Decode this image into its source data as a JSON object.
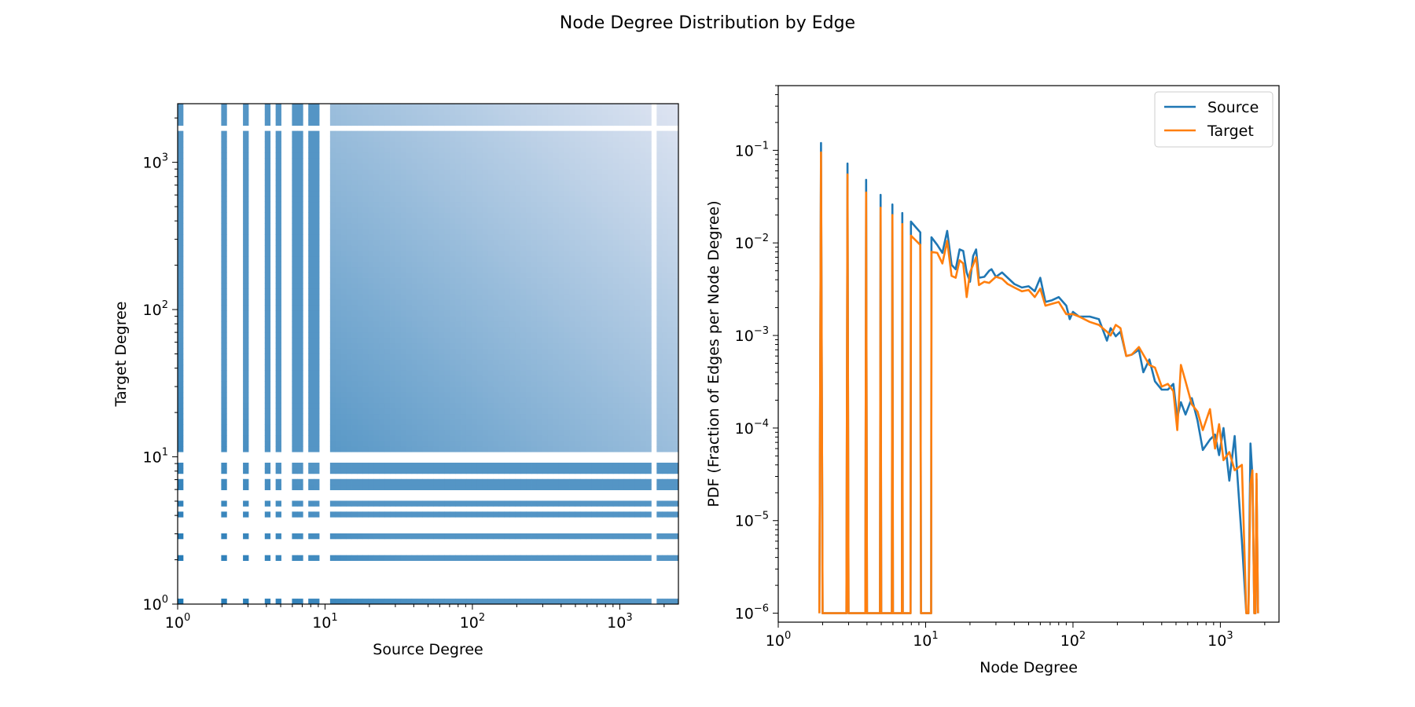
{
  "title": "Node Degree Distribution by Edge",
  "colors": {
    "source": "#1f77b4",
    "target": "#ff7f0e",
    "heat_base": "#1f77b4",
    "heat_light": "#f3f0f8"
  },
  "chart_data": [
    {
      "type": "heatmap",
      "xlabel": "Source Degree",
      "ylabel": "Target Degree",
      "xscale": "log",
      "yscale": "log",
      "xlim": [
        1,
        2500
      ],
      "ylim": [
        1,
        2500
      ],
      "xticks": [
        {
          "base": "10",
          "exp": "0",
          "value": 1
        },
        {
          "base": "10",
          "exp": "1",
          "value": 10
        },
        {
          "base": "10",
          "exp": "2",
          "value": 100
        },
        {
          "base": "10",
          "exp": "3",
          "value": 1000
        }
      ],
      "yticks": [
        {
          "base": "10",
          "exp": "0",
          "value": 1
        },
        {
          "base": "10",
          "exp": "1",
          "value": 10
        },
        {
          "base": "10",
          "exp": "2",
          "value": 100
        },
        {
          "base": "10",
          "exp": "3",
          "value": 1000
        }
      ],
      "integer_degrees_below": 10,
      "missing_degree_bands": [
        [
          10.0,
          10.4
        ],
        [
          1700,
          1800
        ]
      ],
      "dense_low_degrees": [
        1,
        2,
        3,
        4,
        5,
        6,
        7,
        8,
        9
      ],
      "cmap": "PuBu",
      "grid": false
    },
    {
      "type": "line",
      "xlabel": "Node Degree",
      "ylabel": "PDF (Fraction of Edges per Node Degree)",
      "xscale": "log",
      "yscale": "log",
      "xlim": [
        1,
        2500
      ],
      "ylim": [
        8e-07,
        0.5
      ],
      "xticks": [
        {
          "base": "10",
          "exp": "0",
          "value": 1
        },
        {
          "base": "10",
          "exp": "1",
          "value": 10
        },
        {
          "base": "10",
          "exp": "2",
          "value": 100
        },
        {
          "base": "10",
          "exp": "3",
          "value": 1000
        }
      ],
      "yticks": [
        {
          "base": "10",
          "exp": "−6",
          "value": 1e-06
        },
        {
          "base": "10",
          "exp": "−5",
          "value": 1e-05
        },
        {
          "base": "10",
          "exp": "−4",
          "value": 0.0001
        },
        {
          "base": "10",
          "exp": "−3",
          "value": 0.001
        },
        {
          "base": "10",
          "exp": "−2",
          "value": 0.01
        },
        {
          "base": "10",
          "exp": "−1",
          "value": 0.1
        }
      ],
      "legend": "top-right",
      "grid": false,
      "series": [
        {
          "name": "Source",
          "points": [
            [
              1.9,
              1e-06
            ],
            [
              1.95,
              0.12
            ],
            [
              2.0,
              1e-06
            ],
            [
              2.9,
              1e-06
            ],
            [
              2.95,
              0.072
            ],
            [
              3.0,
              1e-06
            ],
            [
              3.9,
              1e-06
            ],
            [
              3.95,
              0.048
            ],
            [
              4.0,
              1e-06
            ],
            [
              4.9,
              1e-06
            ],
            [
              4.95,
              0.033
            ],
            [
              5.0,
              1e-06
            ],
            [
              5.9,
              1e-06
            ],
            [
              5.95,
              0.026
            ],
            [
              6.0,
              1e-06
            ],
            [
              6.9,
              1e-06
            ],
            [
              6.95,
              0.021
            ],
            [
              7.0,
              1e-06
            ],
            [
              7.9,
              1e-06
            ],
            [
              7.95,
              0.017
            ],
            [
              9.2,
              0.013
            ],
            [
              9.3,
              1e-06
            ],
            [
              10.9,
              1e-06
            ],
            [
              10.95,
              0.0115
            ],
            [
              12,
              0.0095
            ],
            [
              13,
              0.0078
            ],
            [
              14,
              0.0135
            ],
            [
              15,
              0.0058
            ],
            [
              16,
              0.0052
            ],
            [
              17,
              0.0085
            ],
            [
              18,
              0.0082
            ],
            [
              19,
              0.0048
            ],
            [
              20,
              0.0038
            ],
            [
              21,
              0.0072
            ],
            [
              22,
              0.0085
            ],
            [
              23,
              0.0042
            ],
            [
              25,
              0.0043
            ],
            [
              27,
              0.005
            ],
            [
              28,
              0.0052
            ],
            [
              30,
              0.0043
            ],
            [
              33,
              0.0048
            ],
            [
              36,
              0.0042
            ],
            [
              40,
              0.0036
            ],
            [
              45,
              0.0033
            ],
            [
              50,
              0.0034
            ],
            [
              55,
              0.003
            ],
            [
              60,
              0.0042
            ],
            [
              65,
              0.0023
            ],
            [
              72,
              0.0024
            ],
            [
              80,
              0.0026
            ],
            [
              90,
              0.0021
            ],
            [
              95,
              0.0015
            ],
            [
              100,
              0.0018
            ],
            [
              110,
              0.0016
            ],
            [
              130,
              0.0016
            ],
            [
              150,
              0.0015
            ],
            [
              170,
              0.00088
            ],
            [
              180,
              0.0012
            ],
            [
              195,
              0.00098
            ],
            [
              210,
              0.0011
            ],
            [
              230,
              0.0006
            ],
            [
              250,
              0.00062
            ],
            [
              280,
              0.0007
            ],
            [
              300,
              0.0004
            ],
            [
              330,
              0.00055
            ],
            [
              360,
              0.00032
            ],
            [
              400,
              0.00026
            ],
            [
              440,
              0.00026
            ],
            [
              480,
              0.0003
            ],
            [
              510,
              0.00013
            ],
            [
              540,
              0.00019
            ],
            [
              580,
              0.00014
            ],
            [
              640,
              0.00021
            ],
            [
              700,
              0.00012
            ],
            [
              760,
              5.8e-05
            ],
            [
              850,
              7.5e-05
            ],
            [
              920,
              8.5e-05
            ],
            [
              980,
              5.1e-05
            ],
            [
              1050,
              0.0001
            ],
            [
              1150,
              2.7e-05
            ],
            [
              1250,
              8.2e-05
            ],
            [
              1400,
              6e-06
            ],
            [
              1500,
              1e-06
            ],
            [
              1550,
              1e-06
            ],
            [
              1600,
              6.8e-05
            ],
            [
              1650,
              3e-05
            ],
            [
              1700,
              1e-06
            ],
            [
              1730,
              1e-06
            ],
            [
              1760,
              2.8e-05
            ],
            [
              1800,
              1e-06
            ]
          ]
        },
        {
          "name": "Target",
          "points": [
            [
              1.9,
              1e-06
            ],
            [
              1.95,
              0.095
            ],
            [
              2.0,
              1e-06
            ],
            [
              2.9,
              1e-06
            ],
            [
              2.95,
              0.055
            ],
            [
              3.0,
              1e-06
            ],
            [
              3.9,
              1e-06
            ],
            [
              3.95,
              0.035
            ],
            [
              4.0,
              1e-06
            ],
            [
              4.9,
              1e-06
            ],
            [
              4.95,
              0.024
            ],
            [
              5.0,
              1e-06
            ],
            [
              5.9,
              1e-06
            ],
            [
              5.95,
              0.02
            ],
            [
              6.0,
              1e-06
            ],
            [
              6.9,
              1e-06
            ],
            [
              6.95,
              0.016
            ],
            [
              7.0,
              1e-06
            ],
            [
              7.9,
              1e-06
            ],
            [
              7.95,
              0.012
            ],
            [
              9.2,
              0.0095
            ],
            [
              9.3,
              1e-06
            ],
            [
              10.9,
              1e-06
            ],
            [
              10.95,
              0.008
            ],
            [
              12,
              0.0078
            ],
            [
              13,
              0.006
            ],
            [
              14,
              0.0105
            ],
            [
              15,
              0.0044
            ],
            [
              16,
              0.0042
            ],
            [
              17,
              0.0065
            ],
            [
              18,
              0.006
            ],
            [
              19,
              0.0026
            ],
            [
              20,
              0.0048
            ],
            [
              21,
              0.0058
            ],
            [
              22,
              0.007
            ],
            [
              23,
              0.0035
            ],
            [
              25,
              0.0038
            ],
            [
              27,
              0.0037
            ],
            [
              30,
              0.0043
            ],
            [
              33,
              0.0041
            ],
            [
              36,
              0.0036
            ],
            [
              40,
              0.0033
            ],
            [
              45,
              0.003
            ],
            [
              50,
              0.0031
            ],
            [
              55,
              0.0026
            ],
            [
              60,
              0.0032
            ],
            [
              65,
              0.0021
            ],
            [
              72,
              0.0022
            ],
            [
              80,
              0.0023
            ],
            [
              90,
              0.0017
            ],
            [
              100,
              0.0017
            ],
            [
              110,
              0.0016
            ],
            [
              130,
              0.0014
            ],
            [
              150,
              0.0013
            ],
            [
              170,
              0.0011
            ],
            [
              180,
              0.001
            ],
            [
              195,
              0.0013
            ],
            [
              210,
              0.0012
            ],
            [
              230,
              0.0006
            ],
            [
              250,
              0.00062
            ],
            [
              280,
              0.00075
            ],
            [
              300,
              0.00062
            ],
            [
              330,
              0.00048
            ],
            [
              360,
              0.00045
            ],
            [
              400,
              0.00028
            ],
            [
              440,
              0.0003
            ],
            [
              480,
              0.00025
            ],
            [
              510,
              9.5e-05
            ],
            [
              540,
              0.00048
            ],
            [
              580,
              0.00032
            ],
            [
              640,
              0.00018
            ],
            [
              700,
              0.00015
            ],
            [
              760,
              9.5e-05
            ],
            [
              850,
              0.00016
            ],
            [
              920,
              6e-05
            ],
            [
              980,
              0.00011
            ],
            [
              1050,
              4.5e-05
            ],
            [
              1150,
              5.5e-05
            ],
            [
              1250,
              3.5e-05
            ],
            [
              1400,
              4e-05
            ],
            [
              1500,
              1e-06
            ],
            [
              1550,
              1e-06
            ],
            [
              1600,
              2.5e-05
            ],
            [
              1650,
              3.5e-05
            ],
            [
              1700,
              1e-06
            ],
            [
              1730,
              1e-06
            ],
            [
              1760,
              3.2e-05
            ],
            [
              1800,
              1e-06
            ]
          ]
        }
      ]
    }
  ]
}
